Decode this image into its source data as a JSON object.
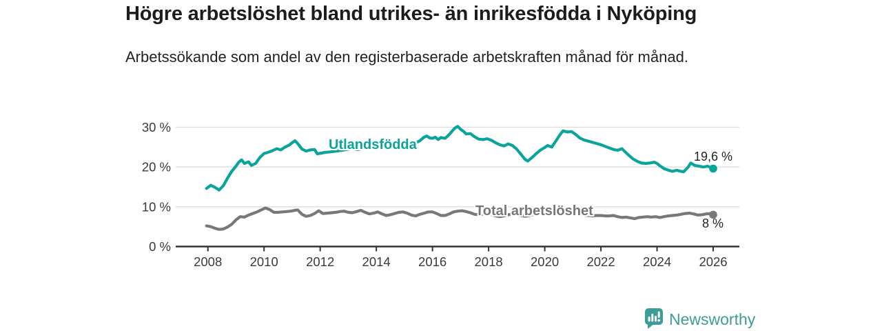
{
  "page": {
    "title": "Högre arbetslöshet bland utrikes- än inrikesfödda i Nyköping",
    "subtitle": "Arbetssökande som andel av den registerbaserade arbetskraften månad för månad."
  },
  "branding": {
    "logo_text": "Newsworthy",
    "logo_icon": "bar-chart-speech-bubble-icon",
    "logo_color": "#3d9c97"
  },
  "chart_data": {
    "type": "line",
    "title": "Högre arbetslöshet bland utrikes- än inrikesfödda i Nyköping",
    "subtitle": "Arbetssökande som andel av den registerbaserade arbetskraften månad för månad.",
    "legend_position": "inline-labels-on-lines",
    "x_axis": {
      "tick_values": [
        2008,
        2010,
        2012,
        2014,
        2016,
        2018,
        2020,
        2022,
        2024,
        2026
      ],
      "range": [
        2007.9,
        2026.9
      ],
      "grid": false
    },
    "y_axis": {
      "tick_values": [
        0,
        10,
        20,
        30
      ],
      "tick_suffix": " %",
      "range": [
        0,
        31
      ],
      "grid": true
    },
    "style": {
      "grid_color": "#dcdcdc",
      "axis_color": "#333333",
      "tick_text_color": "#3a3a3a",
      "background": "#ffffff"
    },
    "series": [
      {
        "name": "Utlandsfödda",
        "color": "#0aa49c",
        "end_label": "19,6 %",
        "last_value": 19.6,
        "points": [
          [
            2007.95,
            14.6
          ],
          [
            2008.1,
            15.4
          ],
          [
            2008.25,
            14.9
          ],
          [
            2008.4,
            14.2
          ],
          [
            2008.55,
            15.3
          ],
          [
            2008.7,
            17.2
          ],
          [
            2008.85,
            18.9
          ],
          [
            2009.0,
            20.2
          ],
          [
            2009.1,
            21.2
          ],
          [
            2009.2,
            21.8
          ],
          [
            2009.3,
            20.9
          ],
          [
            2009.45,
            21.3
          ],
          [
            2009.55,
            20.4
          ],
          [
            2009.7,
            20.9
          ],
          [
            2009.85,
            22.4
          ],
          [
            2010.0,
            23.4
          ],
          [
            2010.15,
            23.7
          ],
          [
            2010.3,
            24.1
          ],
          [
            2010.45,
            24.6
          ],
          [
            2010.6,
            24.3
          ],
          [
            2010.75,
            25.0
          ],
          [
            2010.9,
            25.5
          ],
          [
            2011.0,
            26.1
          ],
          [
            2011.1,
            26.6
          ],
          [
            2011.2,
            25.9
          ],
          [
            2011.35,
            24.5
          ],
          [
            2011.5,
            24.0
          ],
          [
            2011.65,
            24.3
          ],
          [
            2011.8,
            24.4
          ],
          [
            2011.9,
            23.3
          ],
          [
            2012.05,
            23.5
          ],
          [
            2012.2,
            23.7
          ],
          [
            2012.35,
            23.8
          ],
          [
            2012.6,
            24.0
          ],
          [
            2012.85,
            24.3
          ],
          [
            2013.1,
            24.6
          ],
          [
            2013.35,
            24.4
          ],
          [
            2013.6,
            24.8
          ],
          [
            2013.85,
            25.1
          ],
          [
            2014.1,
            25.2
          ],
          [
            2014.35,
            25.0
          ],
          [
            2014.6,
            25.4
          ],
          [
            2014.85,
            25.6
          ],
          [
            2015.1,
            25.5
          ],
          [
            2015.35,
            25.9
          ],
          [
            2015.55,
            26.6
          ],
          [
            2015.7,
            27.5
          ],
          [
            2015.8,
            27.8
          ],
          [
            2015.9,
            27.3
          ],
          [
            2016.0,
            27.2
          ],
          [
            2016.1,
            27.5
          ],
          [
            2016.2,
            26.9
          ],
          [
            2016.3,
            27.4
          ],
          [
            2016.45,
            27.2
          ],
          [
            2016.6,
            28.2
          ],
          [
            2016.7,
            29.0
          ],
          [
            2016.8,
            29.8
          ],
          [
            2016.9,
            30.2
          ],
          [
            2017.0,
            29.5
          ],
          [
            2017.1,
            29.0
          ],
          [
            2017.2,
            28.3
          ],
          [
            2017.35,
            28.4
          ],
          [
            2017.5,
            27.6
          ],
          [
            2017.65,
            27.0
          ],
          [
            2017.8,
            26.9
          ],
          [
            2017.95,
            27.1
          ],
          [
            2018.1,
            26.7
          ],
          [
            2018.25,
            26.1
          ],
          [
            2018.4,
            25.6
          ],
          [
            2018.55,
            25.3
          ],
          [
            2018.7,
            25.8
          ],
          [
            2018.85,
            25.4
          ],
          [
            2019.0,
            24.5
          ],
          [
            2019.15,
            23.2
          ],
          [
            2019.3,
            21.9
          ],
          [
            2019.4,
            21.5
          ],
          [
            2019.55,
            22.4
          ],
          [
            2019.7,
            23.4
          ],
          [
            2019.85,
            24.3
          ],
          [
            2020.0,
            24.9
          ],
          [
            2020.1,
            25.4
          ],
          [
            2020.25,
            25.0
          ],
          [
            2020.4,
            26.6
          ],
          [
            2020.55,
            28.2
          ],
          [
            2020.65,
            29.1
          ],
          [
            2020.8,
            28.8
          ],
          [
            2020.95,
            28.9
          ],
          [
            2021.1,
            28.2
          ],
          [
            2021.25,
            27.3
          ],
          [
            2021.4,
            26.8
          ],
          [
            2021.55,
            26.5
          ],
          [
            2021.7,
            26.2
          ],
          [
            2021.85,
            25.9
          ],
          [
            2022.0,
            25.6
          ],
          [
            2022.15,
            25.2
          ],
          [
            2022.3,
            24.8
          ],
          [
            2022.45,
            24.4
          ],
          [
            2022.6,
            24.2
          ],
          [
            2022.75,
            24.6
          ],
          [
            2022.85,
            23.9
          ],
          [
            2023.0,
            22.9
          ],
          [
            2023.15,
            22.0
          ],
          [
            2023.3,
            21.4
          ],
          [
            2023.45,
            21.0
          ],
          [
            2023.6,
            20.9
          ],
          [
            2023.75,
            21.0
          ],
          [
            2023.9,
            21.2
          ],
          [
            2024.0,
            20.9
          ],
          [
            2024.1,
            20.3
          ],
          [
            2024.25,
            19.6
          ],
          [
            2024.4,
            19.2
          ],
          [
            2024.55,
            18.9
          ],
          [
            2024.7,
            19.2
          ],
          [
            2024.85,
            18.9
          ],
          [
            2024.95,
            18.8
          ],
          [
            2025.1,
            19.9
          ],
          [
            2025.2,
            21.0
          ],
          [
            2025.35,
            20.4
          ],
          [
            2025.5,
            20.2
          ],
          [
            2025.65,
            20.0
          ],
          [
            2025.8,
            20.2
          ],
          [
            2025.9,
            19.9
          ],
          [
            2026.0,
            19.6
          ]
        ]
      },
      {
        "name": "Total arbetslöshet",
        "color": "#787878",
        "end_label": "8 %",
        "last_value": 8.0,
        "points": [
          [
            2007.95,
            5.2
          ],
          [
            2008.1,
            5.0
          ],
          [
            2008.25,
            4.6
          ],
          [
            2008.4,
            4.3
          ],
          [
            2008.55,
            4.4
          ],
          [
            2008.7,
            4.9
          ],
          [
            2008.85,
            5.6
          ],
          [
            2009.0,
            6.7
          ],
          [
            2009.15,
            7.5
          ],
          [
            2009.3,
            7.4
          ],
          [
            2009.45,
            7.9
          ],
          [
            2009.6,
            8.3
          ],
          [
            2009.75,
            8.7
          ],
          [
            2009.9,
            9.2
          ],
          [
            2010.05,
            9.7
          ],
          [
            2010.2,
            9.3
          ],
          [
            2010.35,
            8.6
          ],
          [
            2010.5,
            8.6
          ],
          [
            2010.65,
            8.7
          ],
          [
            2010.8,
            8.8
          ],
          [
            2010.95,
            8.9
          ],
          [
            2011.1,
            9.1
          ],
          [
            2011.2,
            9.2
          ],
          [
            2011.35,
            8.1
          ],
          [
            2011.5,
            7.6
          ],
          [
            2011.65,
            7.8
          ],
          [
            2011.8,
            8.3
          ],
          [
            2011.95,
            9.0
          ],
          [
            2012.1,
            8.3
          ],
          [
            2012.25,
            8.4
          ],
          [
            2012.4,
            8.5
          ],
          [
            2012.55,
            8.6
          ],
          [
            2012.7,
            8.8
          ],
          [
            2012.85,
            8.9
          ],
          [
            2013.0,
            8.6
          ],
          [
            2013.15,
            8.5
          ],
          [
            2013.3,
            8.8
          ],
          [
            2013.45,
            9.1
          ],
          [
            2013.6,
            8.6
          ],
          [
            2013.75,
            8.2
          ],
          [
            2013.9,
            8.4
          ],
          [
            2014.05,
            8.7
          ],
          [
            2014.2,
            8.2
          ],
          [
            2014.35,
            7.8
          ],
          [
            2014.5,
            8.0
          ],
          [
            2014.65,
            8.3
          ],
          [
            2014.8,
            8.6
          ],
          [
            2014.95,
            8.7
          ],
          [
            2015.1,
            8.4
          ],
          [
            2015.25,
            7.9
          ],
          [
            2015.4,
            7.7
          ],
          [
            2015.55,
            8.1
          ],
          [
            2015.7,
            8.4
          ],
          [
            2015.85,
            8.7
          ],
          [
            2016.0,
            8.7
          ],
          [
            2016.15,
            8.3
          ],
          [
            2016.3,
            7.8
          ],
          [
            2016.45,
            7.8
          ],
          [
            2016.6,
            8.2
          ],
          [
            2016.75,
            8.7
          ],
          [
            2016.9,
            8.9
          ],
          [
            2017.05,
            9.0
          ],
          [
            2017.2,
            8.8
          ],
          [
            2017.35,
            8.5
          ],
          [
            2017.5,
            8.1
          ],
          [
            2017.65,
            8.0
          ],
          [
            2017.8,
            8.1
          ],
          [
            2017.95,
            8.2
          ],
          [
            2018.1,
            8.0
          ],
          [
            2018.25,
            7.7
          ],
          [
            2018.4,
            7.5
          ],
          [
            2018.55,
            7.7
          ],
          [
            2018.7,
            8.0
          ],
          [
            2018.85,
            8.2
          ],
          [
            2019.0,
            8.1
          ],
          [
            2019.15,
            7.8
          ],
          [
            2019.3,
            7.6
          ],
          [
            2019.45,
            7.8
          ],
          [
            2019.6,
            8.0
          ],
          [
            2019.75,
            8.3
          ],
          [
            2019.9,
            8.5
          ],
          [
            2020.05,
            8.7
          ],
          [
            2020.2,
            8.8
          ],
          [
            2020.35,
            8.9
          ],
          [
            2020.5,
            8.8
          ],
          [
            2020.65,
            8.6
          ],
          [
            2020.8,
            8.5
          ],
          [
            2020.95,
            8.4
          ],
          [
            2021.1,
            8.2
          ],
          [
            2021.25,
            8.0
          ],
          [
            2021.4,
            7.9
          ],
          [
            2021.55,
            7.8
          ],
          [
            2021.7,
            7.7
          ],
          [
            2021.85,
            7.8
          ],
          [
            2022.0,
            7.8
          ],
          [
            2022.15,
            7.7
          ],
          [
            2022.3,
            7.7
          ],
          [
            2022.45,
            7.8
          ],
          [
            2022.6,
            7.5
          ],
          [
            2022.75,
            7.3
          ],
          [
            2022.9,
            7.4
          ],
          [
            2023.05,
            7.2
          ],
          [
            2023.2,
            7.0
          ],
          [
            2023.35,
            7.3
          ],
          [
            2023.5,
            7.4
          ],
          [
            2023.65,
            7.5
          ],
          [
            2023.8,
            7.4
          ],
          [
            2023.95,
            7.5
          ],
          [
            2024.1,
            7.3
          ],
          [
            2024.25,
            7.5
          ],
          [
            2024.4,
            7.7
          ],
          [
            2024.55,
            7.8
          ],
          [
            2024.7,
            7.9
          ],
          [
            2024.85,
            8.1
          ],
          [
            2025.0,
            8.3
          ],
          [
            2025.15,
            8.4
          ],
          [
            2025.3,
            8.2
          ],
          [
            2025.45,
            7.9
          ],
          [
            2025.6,
            8.0
          ],
          [
            2025.75,
            8.2
          ],
          [
            2025.9,
            8.3
          ],
          [
            2026.0,
            8.0
          ]
        ]
      }
    ]
  }
}
